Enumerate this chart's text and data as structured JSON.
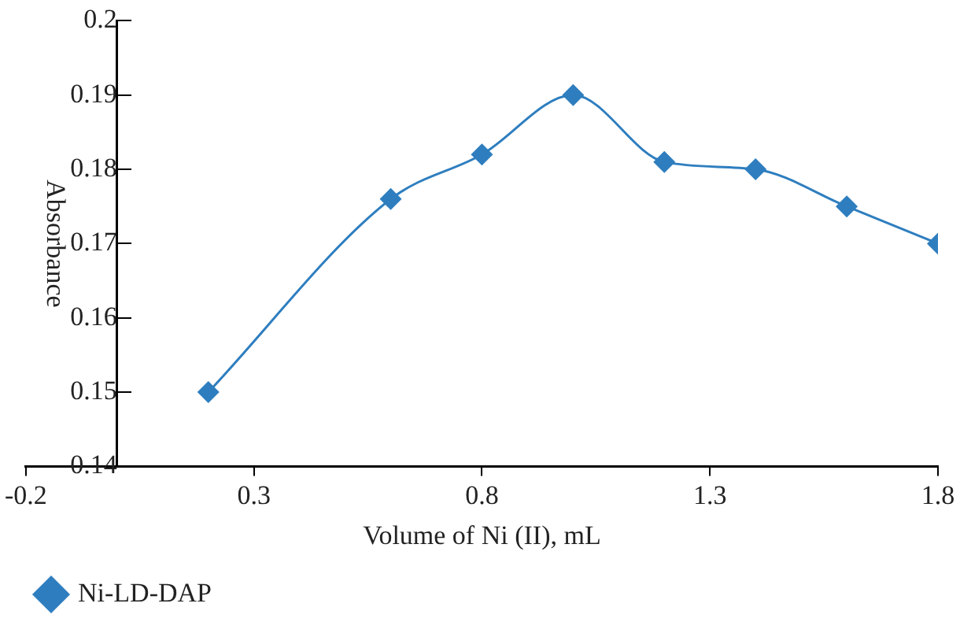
{
  "chart_data": {
    "type": "line",
    "xlabel": "Volume of Ni (II), mL",
    "ylabel": "Absorbance",
    "x": [
      0.2,
      0.6,
      0.8,
      1.0,
      1.2,
      1.4,
      1.6,
      1.8
    ],
    "series": [
      {
        "name": "Ni-LD-DAP",
        "color": "#2e7ebf",
        "values": [
          0.15,
          0.176,
          0.182,
          0.19,
          0.181,
          0.18,
          0.175,
          0.17
        ]
      }
    ],
    "xlim": [
      -0.2,
      1.8
    ],
    "xticks": [
      -0.2,
      0.3,
      0.8,
      1.3,
      1.8
    ],
    "ylim": [
      0.14,
      0.2
    ],
    "yticks": [
      0.14,
      0.15,
      0.16,
      0.17,
      0.18,
      0.19,
      0.2
    ],
    "grid": false,
    "legend": "bottom left",
    "marker": "diamond",
    "line_style": "solid"
  }
}
